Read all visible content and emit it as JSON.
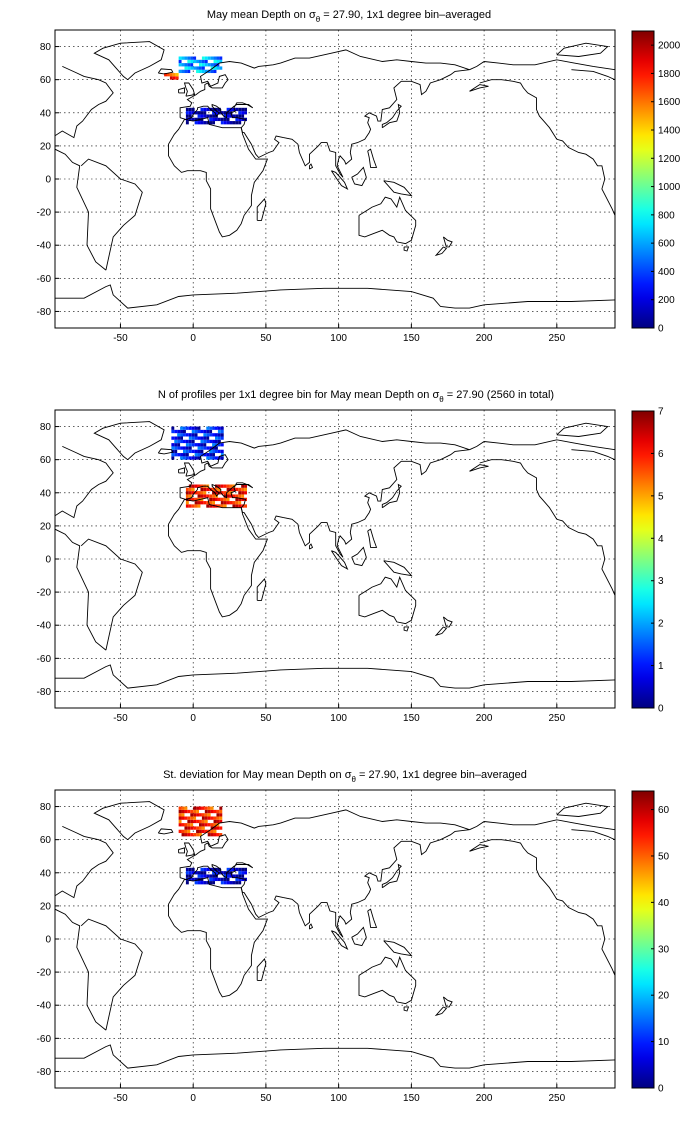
{
  "panels": [
    {
      "title_pre": "May mean Depth on σ",
      "title_sub": "θ",
      "title_post": " = 27.90, 1x1 degree bin–averaged",
      "xticks": [
        -50,
        0,
        50,
        100,
        150,
        200,
        250
      ],
      "yticks": [
        80,
        60,
        40,
        20,
        0,
        -20,
        -40,
        -60,
        -80
      ],
      "colorbar_ticks": [
        2000,
        1800,
        1600,
        1400,
        1200,
        1000,
        800,
        600,
        400,
        200,
        0
      ],
      "colorbar_range": [
        0,
        2100
      ],
      "data_regions": [
        {
          "lon": [
            -10,
            20
          ],
          "lat": [
            64,
            74
          ],
          "value": 600
        },
        {
          "lon": [
            -5,
            36
          ],
          "lat": [
            33,
            43
          ],
          "value": 100
        },
        {
          "lon": [
            -20,
            -10
          ],
          "lat": [
            60,
            64
          ],
          "value": 1700
        }
      ]
    },
    {
      "title_pre": "N of profiles per 1x1 degree bin for May mean Depth on σ",
      "title_sub": "θ",
      "title_post": " = 27.90 (2560 in total)",
      "xticks": [
        -50,
        0,
        50,
        100,
        150,
        200,
        250
      ],
      "yticks": [
        80,
        60,
        40,
        20,
        0,
        -20,
        -40,
        -60,
        -80
      ],
      "colorbar_ticks": [
        7,
        6,
        5,
        4,
        3,
        2,
        1,
        0
      ],
      "colorbar_range": [
        0,
        7
      ],
      "data_regions": [
        {
          "lon": [
            -15,
            20
          ],
          "lat": [
            60,
            80
          ],
          "value": 1
        },
        {
          "lon": [
            -5,
            36
          ],
          "lat": [
            31,
            44
          ],
          "value": 6
        }
      ]
    },
    {
      "title_pre": "St. deviation for May mean Depth on σ",
      "title_sub": "θ",
      "title_post": " = 27.90, 1x1 degree bin–averaged",
      "xticks": [
        -50,
        0,
        50,
        100,
        150,
        200,
        250
      ],
      "yticks": [
        80,
        60,
        40,
        20,
        0,
        -20,
        -40,
        -60,
        -80
      ],
      "colorbar_ticks": [
        60,
        50,
        40,
        30,
        20,
        10,
        0
      ],
      "colorbar_range": [
        0,
        64
      ],
      "data_regions": [
        {
          "lon": [
            -10,
            20
          ],
          "lat": [
            62,
            80
          ],
          "value": 55
        },
        {
          "lon": [
            -5,
            36
          ],
          "lat": [
            33,
            43
          ],
          "value": 5
        }
      ]
    }
  ]
}
